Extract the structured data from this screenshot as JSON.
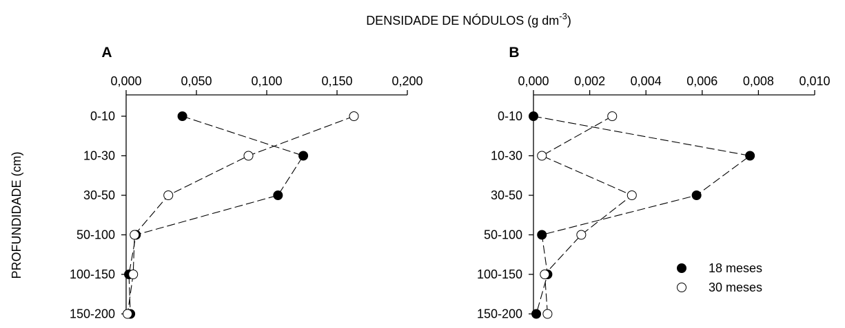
{
  "figure": {
    "title_main": "DENSIDADE DE NÓDULOS (g dm",
    "title_sup": "-3",
    "title_close": ")",
    "ylabel": "PROFUNDIDADE (cm)"
  },
  "legend": {
    "items": [
      {
        "label": "18 meses",
        "marker": "filled"
      },
      {
        "label": "30 meses",
        "marker": "open"
      }
    ]
  },
  "colors": {
    "filled": "#000000",
    "open": "#ffffff",
    "stroke": "#000000"
  },
  "chart_data": [
    {
      "type": "line",
      "panel": "A",
      "xlabel": "DENSIDADE DE NÓDULOS (g dm-3)",
      "ylabel": "PROFUNDIDADE (cm)",
      "x_ticks": [
        "0,000",
        "0,050",
        "0,100",
        "0,150",
        "0,200"
      ],
      "xlim": [
        0,
        0.2
      ],
      "x_axis_position": "top",
      "categories": [
        "0-10",
        "10-30",
        "30-50",
        "50-100",
        "100-150",
        "150-200"
      ],
      "series": [
        {
          "name": "18 meses",
          "marker": "filled",
          "values": [
            0.04,
            0.126,
            0.108,
            0.007,
            0.002,
            0.003
          ]
        },
        {
          "name": "30 meses",
          "marker": "open",
          "values": [
            0.162,
            0.087,
            0.03,
            0.006,
            0.005,
            0.001
          ]
        }
      ],
      "grid": false,
      "line_style": "dashed"
    },
    {
      "type": "line",
      "panel": "B",
      "xlabel": "DENSIDADE DE NÓDULOS (g dm-3)",
      "ylabel": "PROFUNDIDADE (cm)",
      "x_ticks": [
        "0,000",
        "0,002",
        "0,004",
        "0,006",
        "0,008",
        "0,010"
      ],
      "xlim": [
        0,
        0.01
      ],
      "x_axis_position": "top",
      "categories": [
        "0-10",
        "10-30",
        "30-50",
        "50-100",
        "100-150",
        "150-200"
      ],
      "series": [
        {
          "name": "18 meses",
          "marker": "filled",
          "values": [
            0.0,
            0.0077,
            0.0058,
            0.0003,
            0.0005,
            0.0001
          ]
        },
        {
          "name": "30 meses",
          "marker": "open",
          "values": [
            0.0028,
            0.0003,
            0.0035,
            0.0017,
            0.0004,
            0.0005
          ]
        }
      ],
      "grid": false,
      "line_style": "dashed",
      "legend_position": "bottom-right"
    }
  ]
}
